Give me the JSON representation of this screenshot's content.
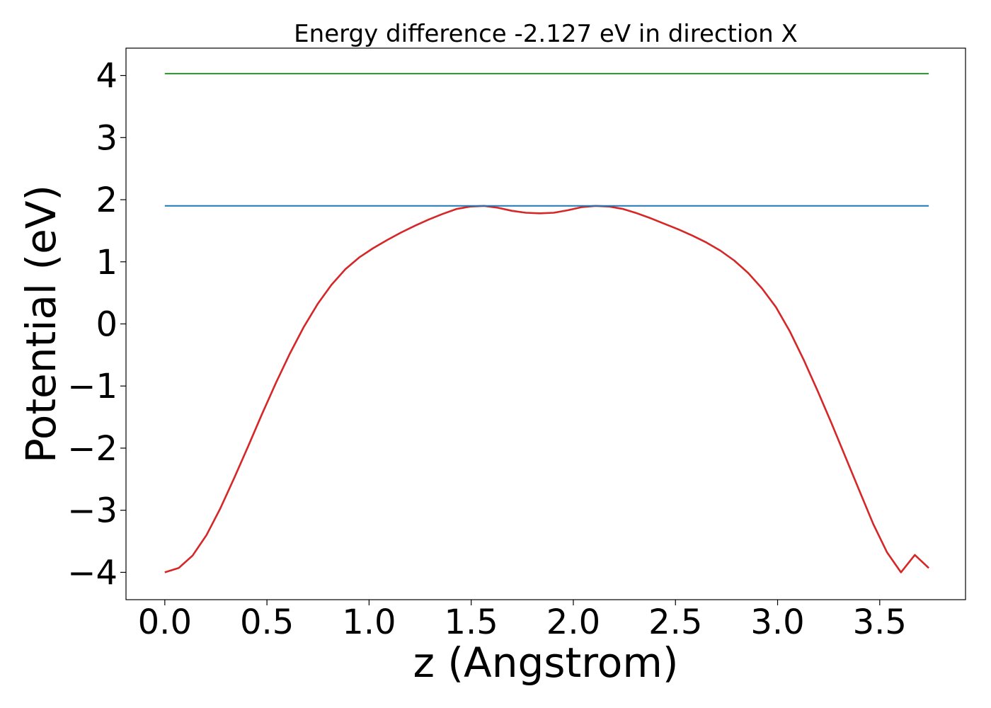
{
  "chart_data": {
    "type": "line",
    "title": "Energy difference -2.127 eV in direction X",
    "xlabel": "z (Angstrom)",
    "ylabel": "Potential (eV)",
    "xlim": [
      -0.19,
      3.92
    ],
    "ylim": [
      -4.44,
      4.44
    ],
    "xticks": [
      0.0,
      0.5,
      1.0,
      1.5,
      2.0,
      2.5,
      3.0,
      3.5
    ],
    "xtick_labels": [
      "0.0",
      "0.5",
      "1.0",
      "1.5",
      "2.0",
      "2.5",
      "3.0",
      "3.5"
    ],
    "yticks": [
      4,
      3,
      2,
      1,
      0,
      -1,
      -2,
      -3,
      -4
    ],
    "ytick_labels": [
      "4",
      "3",
      "2",
      "1",
      "0",
      "−1",
      "−2",
      "−3",
      "−4"
    ],
    "grid": false,
    "legend": "none",
    "series": [
      {
        "color": "#d62728",
        "x": [
          0.0,
          0.068,
          0.136,
          0.204,
          0.272,
          0.34,
          0.408,
          0.476,
          0.544,
          0.612,
          0.68,
          0.748,
          0.816,
          0.884,
          0.952,
          1.02,
          1.088,
          1.156,
          1.224,
          1.292,
          1.36,
          1.428,
          1.496,
          1.564,
          1.632,
          1.7,
          1.768,
          1.836,
          1.904,
          1.972,
          2.04,
          2.108,
          2.176,
          2.244,
          2.312,
          2.38,
          2.448,
          2.516,
          2.584,
          2.652,
          2.72,
          2.788,
          2.856,
          2.924,
          2.992,
          3.06,
          3.128,
          3.196,
          3.264,
          3.332,
          3.4,
          3.468,
          3.536,
          3.604,
          3.672,
          3.74
        ],
        "y": [
          -4.0,
          -3.93,
          -3.73,
          -3.4,
          -2.97,
          -2.48,
          -1.97,
          -1.45,
          -0.95,
          -0.48,
          -0.05,
          0.32,
          0.63,
          0.88,
          1.07,
          1.22,
          1.35,
          1.47,
          1.58,
          1.68,
          1.77,
          1.85,
          1.89,
          1.9,
          1.87,
          1.82,
          1.79,
          1.78,
          1.79,
          1.83,
          1.88,
          1.9,
          1.89,
          1.85,
          1.78,
          1.7,
          1.61,
          1.52,
          1.42,
          1.31,
          1.18,
          1.02,
          0.82,
          0.57,
          0.27,
          -0.12,
          -0.58,
          -1.08,
          -1.6,
          -2.14,
          -2.68,
          -3.22,
          -3.68,
          -4.0,
          -3.72,
          -3.93
        ]
      },
      {
        "color": "#1f77b4",
        "x": [
          0.0,
          3.74
        ],
        "y": [
          1.9,
          1.9
        ]
      },
      {
        "color": "#2ca02c",
        "x": [
          0.0,
          3.74
        ],
        "y": [
          4.03,
          4.03
        ]
      }
    ]
  }
}
